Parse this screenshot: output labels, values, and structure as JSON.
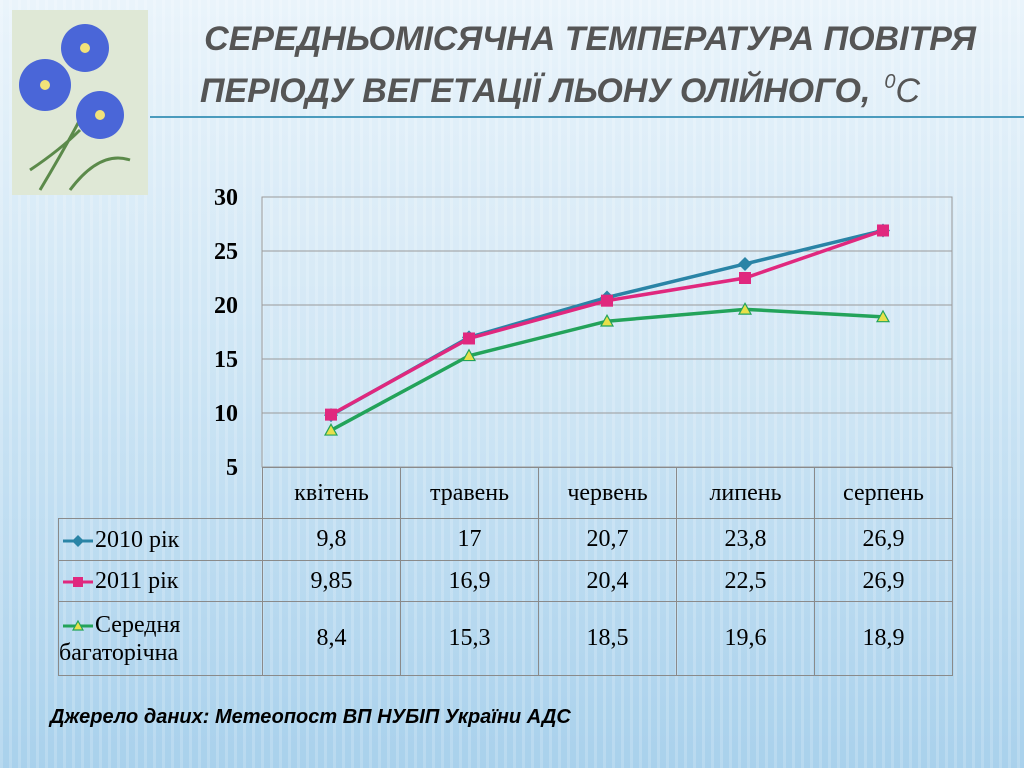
{
  "chart_data": {
    "type": "line",
    "title_lines": [
      "СЕРЕДНЬОМІСЯЧНА ТЕМПЕРАТУРА ПОВІТРЯ",
      "ПЕРІОДУ ВЕГЕТАЦІЇ ЛЬОНУ ОЛІЙНОГО,"
    ],
    "unit_degree": "0",
    "unit": "С",
    "categories": [
      "квітень",
      "травень",
      "червень",
      "липень",
      "серпень"
    ],
    "series": [
      {
        "name": "2010 рік",
        "color": "#2a84a6",
        "marker": "diamond",
        "values": [
          9.8,
          17,
          20.7,
          23.8,
          26.9
        ],
        "value_labels": [
          "9,8",
          "17",
          "20,7",
          "23,8",
          "26,9"
        ]
      },
      {
        "name": "2011 рік",
        "color": "#e0287e",
        "marker": "square",
        "values": [
          9.85,
          16.9,
          20.4,
          22.5,
          26.9
        ],
        "value_labels": [
          "9,85",
          "16,9",
          "20,4",
          "22,5",
          "26,9"
        ]
      },
      {
        "name": "Середня багаторічна",
        "color": "#23a35a",
        "marker": "triangle",
        "values": [
          8.4,
          15.3,
          18.5,
          19.6,
          18.9
        ],
        "value_labels": [
          "8,4",
          "15,3",
          "18,5",
          "19,6",
          "18,9"
        ]
      }
    ],
    "ylim": [
      5,
      30
    ],
    "yticks": [
      5,
      10,
      15,
      20,
      25,
      30
    ],
    "grid": true,
    "source": "Джерело даних: Метеопост ВП НУБІП України АДС"
  }
}
